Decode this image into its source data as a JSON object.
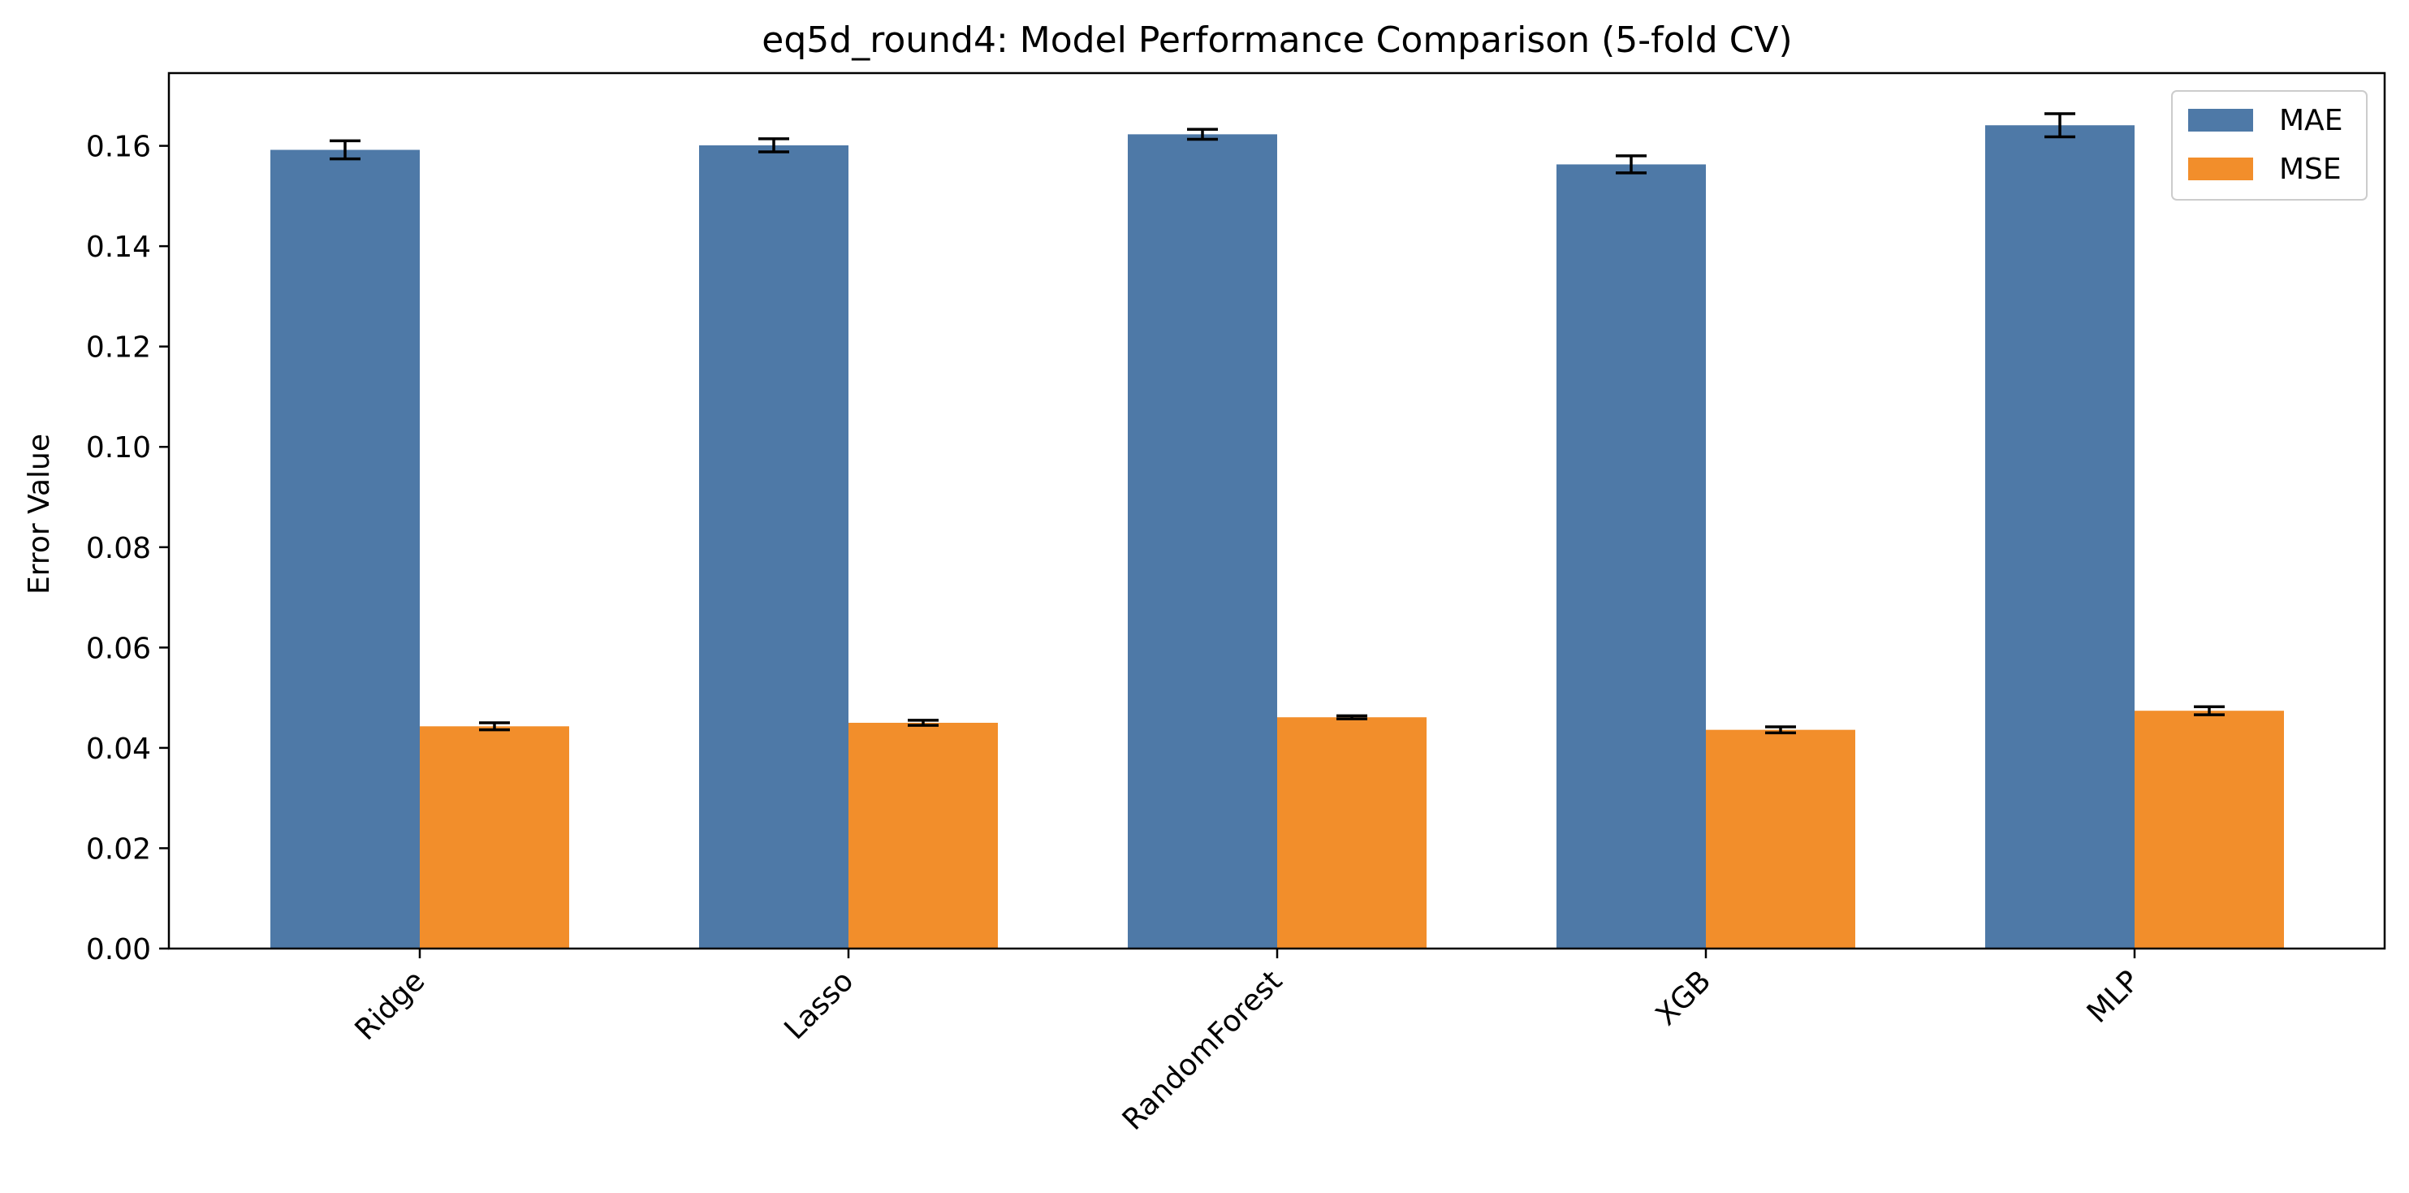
{
  "chart_data": {
    "type": "bar",
    "title": "eq5d_round4: Model Performance Comparison (5-fold CV)",
    "xlabel": "",
    "ylabel": "Error Value",
    "categories": [
      "Ridge",
      "Lasso",
      "RandomForest",
      "XGB",
      "MLP"
    ],
    "series": [
      {
        "name": "MAE",
        "color": "#4e79a7",
        "values": [
          0.1592,
          0.1601,
          0.1623,
          0.1563,
          0.1641
        ],
        "errors": [
          0.0018,
          0.0013,
          0.001,
          0.0017,
          0.0023
        ]
      },
      {
        "name": "MSE",
        "color": "#f28e2b",
        "values": [
          0.0443,
          0.045,
          0.0461,
          0.0436,
          0.0474
        ],
        "errors": [
          0.0007,
          0.0005,
          0.0003,
          0.0006,
          0.0008
        ]
      }
    ],
    "ylim": [
      0,
      0.1745
    ],
    "yticks": [
      "0.00",
      "0.02",
      "0.04",
      "0.06",
      "0.08",
      "0.10",
      "0.12",
      "0.14",
      "0.16"
    ],
    "legend": "top-right",
    "grid": false
  }
}
